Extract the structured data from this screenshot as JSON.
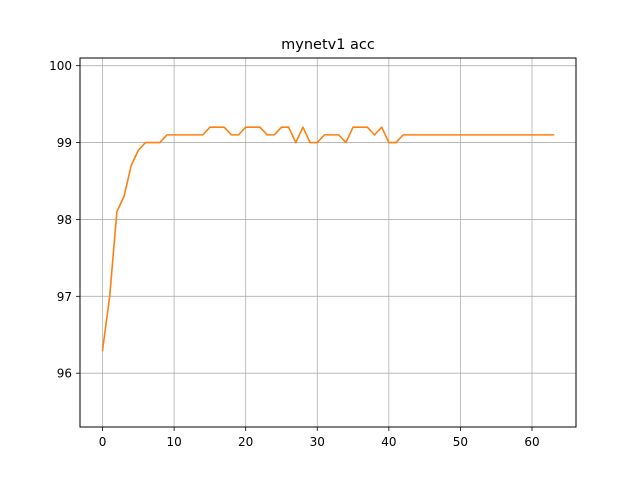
{
  "chart_data": {
    "type": "line",
    "title": "mynetv1 acc",
    "xlabel": "",
    "ylabel": "",
    "xlim": [
      -3.15,
      66.15
    ],
    "ylim": [
      95.3,
      100.1
    ],
    "xticks": [
      0,
      10,
      20,
      30,
      40,
      50,
      60
    ],
    "yticks": [
      96,
      97,
      98,
      99,
      100
    ],
    "grid": true,
    "series": [
      {
        "color": "#ff7f0e",
        "x": [
          0,
          1,
          2,
          3,
          4,
          5,
          6,
          7,
          8,
          9,
          10,
          11,
          12,
          13,
          14,
          15,
          16,
          17,
          18,
          19,
          20,
          21,
          22,
          23,
          24,
          25,
          26,
          27,
          28,
          29,
          30,
          31,
          32,
          33,
          34,
          35,
          36,
          37,
          38,
          39,
          40,
          41,
          42,
          43,
          44,
          45,
          46,
          47,
          48,
          49,
          50,
          51,
          52,
          53,
          54,
          55,
          56,
          57,
          58,
          59,
          60,
          61,
          62,
          63
        ],
        "values": [
          96.3,
          97.0,
          98.1,
          98.3,
          98.7,
          98.9,
          99.0,
          99.0,
          99.0,
          99.1,
          99.1,
          99.1,
          99.1,
          99.1,
          99.1,
          99.2,
          99.2,
          99.2,
          99.1,
          99.1,
          99.2,
          99.2,
          99.2,
          99.1,
          99.1,
          99.2,
          99.2,
          99.0,
          99.2,
          99.0,
          99.0,
          99.1,
          99.1,
          99.1,
          99.0,
          99.2,
          99.2,
          99.2,
          99.1,
          99.2,
          99.0,
          99.0,
          99.1,
          99.1,
          99.1,
          99.1,
          99.1,
          99.1,
          99.1,
          99.1,
          99.1,
          99.1,
          99.1,
          99.1,
          99.1,
          99.1,
          99.1,
          99.1,
          99.1,
          99.1,
          99.1,
          99.1,
          99.1,
          99.1
        ]
      }
    ]
  }
}
